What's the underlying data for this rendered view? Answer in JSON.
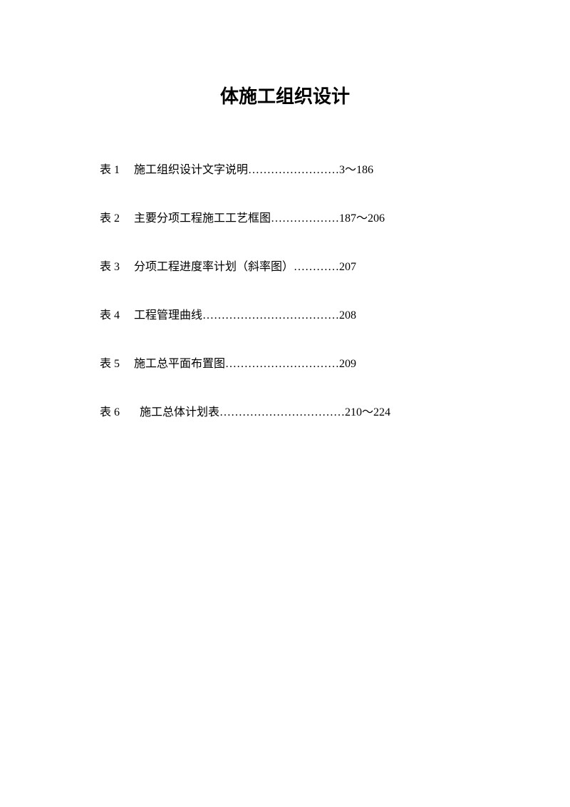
{
  "document": {
    "title": "体施工组织设计",
    "title_fontsize": 26,
    "title_fontweight": "bold",
    "body_fontsize": 16,
    "text_color": "#000000",
    "background_color": "#ffffff",
    "toc": [
      {
        "label": "表 1",
        "name": "施工组织设计文字说明",
        "dots": "……………………",
        "page": "3～186"
      },
      {
        "label": "表 2",
        "name": "主要分项工程施工工艺框图",
        "dots": "………………",
        "page": "187～206"
      },
      {
        "label": "表 3",
        "name": "分项工程进度率计划（斜率图）",
        "dots": "…………",
        "page": "207"
      },
      {
        "label": "表 4",
        "name": "工程管理曲线",
        "dots": "………………………………",
        "page": "208"
      },
      {
        "label": "表 5",
        "name": "施工总平面布置图",
        "dots": "…………………………",
        "page": "209"
      },
      {
        "label": "表 6",
        "name": "施工总体计划表",
        "dots": "……………………………",
        "page": "210～224"
      }
    ]
  }
}
